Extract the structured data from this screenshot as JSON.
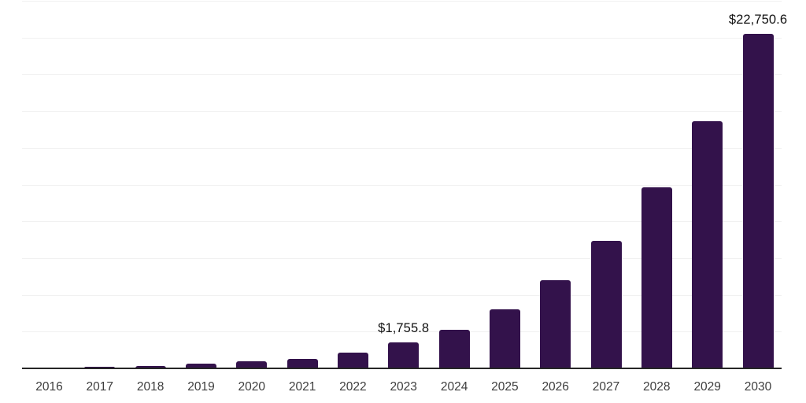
{
  "chart_data": {
    "type": "bar",
    "title": "",
    "xlabel": "",
    "ylabel": "",
    "categories": [
      "2016",
      "2017",
      "2018",
      "2019",
      "2020",
      "2021",
      "2022",
      "2023",
      "2024",
      "2025",
      "2026",
      "2027",
      "2028",
      "2029",
      "2030"
    ],
    "values": [
      75,
      110,
      190,
      320,
      460,
      630,
      1080,
      1755.8,
      2600,
      4000,
      6000,
      8700,
      12300,
      16800,
      22750.6
    ],
    "value_labels": {
      "2023": "$1,755.8",
      "2030": "$22,750.6"
    },
    "ylim": [
      0,
      25000
    ],
    "gridline_interval": 2500,
    "grid": "horizontal-only",
    "legend": "none",
    "y_axis_tick_labels": "none",
    "colors": {
      "bar": "#33124B",
      "gridline": "#F1F1F1",
      "axis_line": "#262626",
      "value_label": "#111111",
      "tick_label": "#3D3D3D",
      "background": "#FFFFFF"
    }
  }
}
